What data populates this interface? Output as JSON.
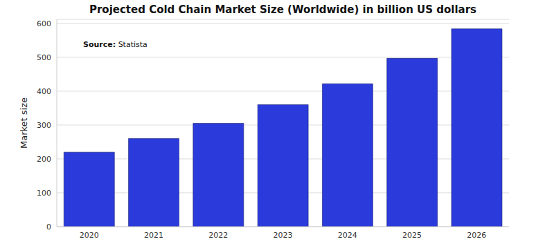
{
  "chart_data": {
    "type": "bar",
    "title": "Projected Cold Chain Market Size (Worldwide) in billion US dollars",
    "y_label": "Market size",
    "annotations": [
      {
        "label": "Source:",
        "text": "Statista"
      }
    ],
    "categories": [
      "2020",
      "2021",
      "2022",
      "2023",
      "2024",
      "2025",
      "2026"
    ],
    "values": [
      220,
      260,
      305,
      360,
      422,
      497,
      584
    ],
    "color": "#2b3bdb",
    "ylim": [
      0,
      612
    ],
    "yticks": [
      0,
      100,
      200,
      300,
      400,
      500,
      600
    ],
    "grid": true
  }
}
